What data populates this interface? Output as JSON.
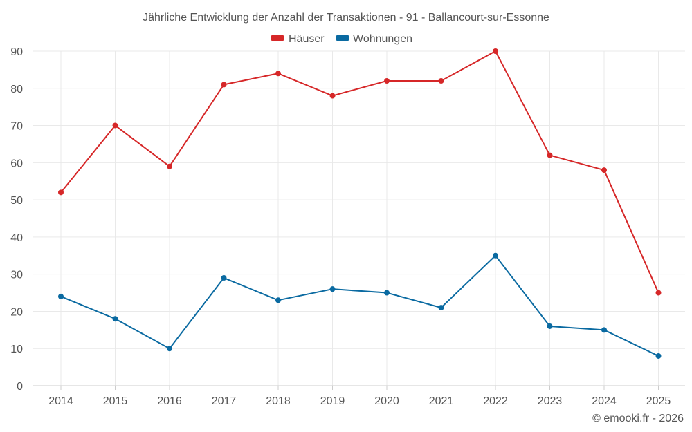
{
  "chart_data": {
    "type": "line",
    "title": "Jährliche Entwicklung der Anzahl der Transaktionen - 91 - Ballancourt-sur-Essonne",
    "categories": [
      "2014",
      "2015",
      "2016",
      "2017",
      "2018",
      "2019",
      "2020",
      "2021",
      "2022",
      "2023",
      "2024",
      "2025"
    ],
    "series": [
      {
        "name": "Häuser",
        "color": "#d62728",
        "values": [
          52,
          70,
          59,
          81,
          84,
          78,
          82,
          82,
          90,
          62,
          58,
          25
        ]
      },
      {
        "name": "Wohnungen",
        "color": "#0a6aa1",
        "values": [
          24,
          18,
          10,
          29,
          23,
          26,
          25,
          21,
          35,
          16,
          15,
          8
        ]
      }
    ],
    "ylim": [
      0,
      90
    ],
    "yticks": [
      0,
      10,
      20,
      30,
      40,
      50,
      60,
      70,
      80,
      90
    ],
    "xlabel": "",
    "ylabel": "",
    "grid": true,
    "legend": "top-center"
  },
  "credit": "© emooki.fr - 2026"
}
